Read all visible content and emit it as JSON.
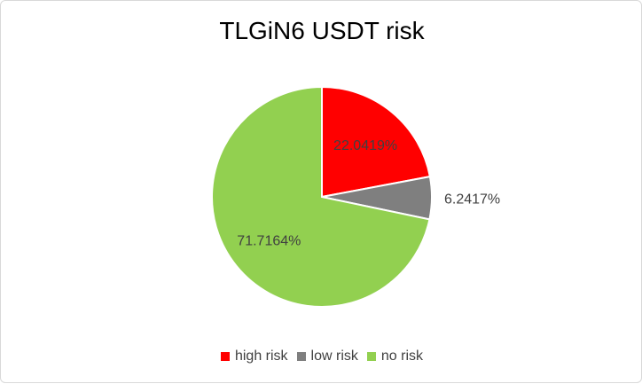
{
  "chart_data": {
    "type": "pie",
    "title": "TLGiN6 USDT risk",
    "categories": [
      "high risk",
      "low risk",
      "no risk"
    ],
    "values": [
      22.0419,
      6.2417,
      71.7164
    ],
    "labels": [
      "22.0419%",
      "6.2417%",
      "71.7164%"
    ],
    "colors": [
      "#ff0000",
      "#7f7f7f",
      "#92d050"
    ],
    "legend_position": "bottom"
  }
}
